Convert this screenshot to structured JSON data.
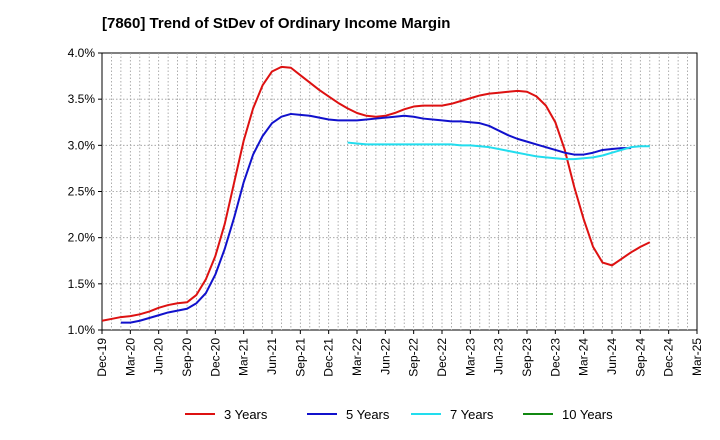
{
  "chart_data": {
    "type": "line",
    "title": "[7860]  Trend of StDev of Ordinary Income Margin",
    "xlabel": "",
    "ylabel": "",
    "x_tick_labels": [
      "Dec-19",
      "Mar-20",
      "Jun-20",
      "Sep-20",
      "Dec-20",
      "Mar-21",
      "Jun-21",
      "Sep-21",
      "Dec-21",
      "Mar-22",
      "Jun-22",
      "Sep-22",
      "Dec-22",
      "Mar-23",
      "Jun-23",
      "Sep-23",
      "Dec-23",
      "Mar-24",
      "Jun-24",
      "Sep-24",
      "Dec-24",
      "Mar-25"
    ],
    "y_tick_labels": [
      "1.0%",
      "1.5%",
      "2.0%",
      "2.5%",
      "3.0%",
      "3.5%",
      "4.0%"
    ],
    "ylim": [
      1.0,
      4.0
    ],
    "y_unit": "%",
    "grid": true,
    "legend_position": "bottom",
    "series": [
      {
        "name": "3 Years",
        "color": "#dd1111",
        "start_index": 0,
        "values": [
          1.1,
          1.12,
          1.14,
          1.15,
          1.17,
          1.2,
          1.24,
          1.27,
          1.29,
          1.3,
          1.38,
          1.55,
          1.8,
          2.15,
          2.6,
          3.05,
          3.4,
          3.65,
          3.8,
          3.85,
          3.84,
          3.76,
          3.68,
          3.6,
          3.53,
          3.46,
          3.4,
          3.35,
          3.32,
          3.31,
          3.32,
          3.35,
          3.39,
          3.42,
          3.43,
          3.43,
          3.43,
          3.45,
          3.48,
          3.51,
          3.54,
          3.56,
          3.57,
          3.58,
          3.59,
          3.58,
          3.53,
          3.43,
          3.25,
          2.95,
          2.55,
          2.2,
          1.9,
          1.73,
          1.7,
          1.77,
          1.84,
          1.9,
          1.95
        ]
      },
      {
        "name": "5 Years",
        "color": "#1111cc",
        "start_index": 2,
        "values": [
          1.08,
          1.08,
          1.1,
          1.13,
          1.16,
          1.19,
          1.21,
          1.23,
          1.29,
          1.4,
          1.6,
          1.88,
          2.22,
          2.6,
          2.9,
          3.1,
          3.24,
          3.31,
          3.34,
          3.33,
          3.32,
          3.3,
          3.28,
          3.27,
          3.27,
          3.27,
          3.28,
          3.29,
          3.3,
          3.31,
          3.32,
          3.31,
          3.29,
          3.28,
          3.27,
          3.26,
          3.26,
          3.25,
          3.24,
          3.21,
          3.16,
          3.11,
          3.07,
          3.04,
          3.01,
          2.98,
          2.95,
          2.92,
          2.9,
          2.9,
          2.92,
          2.95,
          2.96,
          2.97,
          2.97
        ]
      },
      {
        "name": "7 Years",
        "color": "#22ddee",
        "start_index": 26,
        "values": [
          3.03,
          3.02,
          3.01,
          3.01,
          3.01,
          3.01,
          3.01,
          3.01,
          3.01,
          3.01,
          3.01,
          3.01,
          3.0,
          3.0,
          2.99,
          2.98,
          2.96,
          2.94,
          2.92,
          2.9,
          2.88,
          2.87,
          2.86,
          2.85,
          2.85,
          2.86,
          2.87,
          2.89,
          2.92,
          2.95,
          2.98,
          2.99,
          2.99
        ]
      },
      {
        "name": "10 Years",
        "color": "#118811",
        "start_index": 0,
        "values": []
      }
    ]
  }
}
